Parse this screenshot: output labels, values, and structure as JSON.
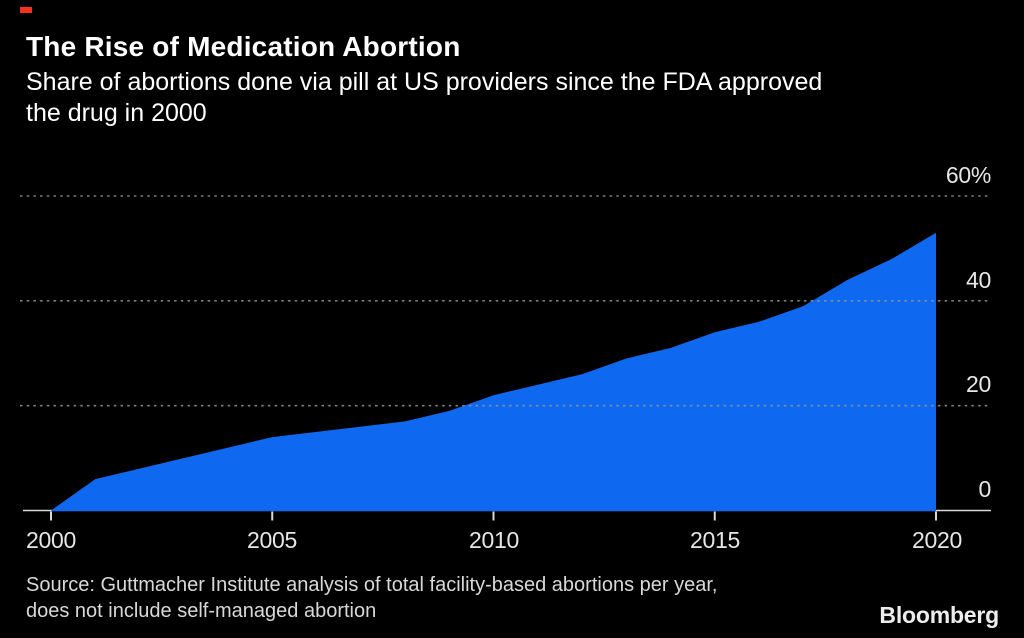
{
  "header": {
    "title": "The Rise of Medication Abortion",
    "subtitle_lines": [
      "Share of abortions done via pill at US providers since the FDA approved",
      "the drug in 2000"
    ]
  },
  "chart_data": {
    "type": "area",
    "title": "The Rise of Medication Abortion",
    "subtitle": "Share of abortions done via pill at US providers since the FDA approved the drug in 2000",
    "x": [
      2000,
      2001,
      2002,
      2003,
      2004,
      2005,
      2006,
      2007,
      2008,
      2009,
      2010,
      2011,
      2012,
      2013,
      2014,
      2015,
      2016,
      2017,
      2018,
      2019,
      2020
    ],
    "series": [
      {
        "name": "Share of abortions done via pill (%)",
        "values": [
          0,
          6,
          8,
          10,
          12,
          14,
          15,
          16,
          17,
          19,
          22,
          24,
          26,
          29,
          31,
          34,
          36,
          39,
          44,
          48,
          53
        ]
      }
    ],
    "xlabel": "",
    "ylabel": "",
    "xlim": [
      2000,
      2020
    ],
    "ylim": [
      0,
      60
    ],
    "x_tick_values": [
      2000,
      2005,
      2010,
      2015,
      2020
    ],
    "x_tick_labels": [
      "2000",
      "2005",
      "2010",
      "2015",
      "2020"
    ],
    "y_tick_values": [
      0,
      20,
      40,
      60
    ],
    "y_tick_labels": [
      "0",
      "20",
      "40",
      "60%"
    ],
    "grid": "horizontal dotted, on",
    "legend": "none",
    "colors": {
      "area": "#0e69f0",
      "background": "#000000",
      "gridline": "#949494",
      "axis": "#d9d9d9",
      "text": "#ffffff",
      "accent": "#f5301e"
    }
  },
  "footer": {
    "source_lines": [
      "Source: Guttmacher Institute analysis of total facility-based abortions per year,",
      "does not include self-managed abortion"
    ],
    "brand": "Bloomberg"
  }
}
